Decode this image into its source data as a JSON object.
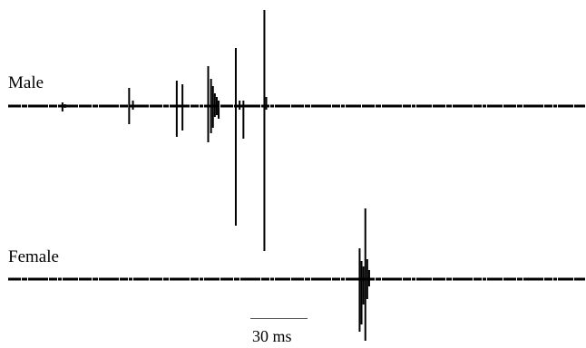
{
  "traces": [
    {
      "id": "male",
      "label": "Male",
      "spikes": [
        {
          "t_ms": 28.5,
          "up": 4,
          "down": 6
        },
        {
          "t_ms": 29.8,
          "up": 2,
          "down": 2
        },
        {
          "t_ms": 63.5,
          "up": 20,
          "down": 20
        },
        {
          "t_ms": 65.5,
          "up": 6,
          "down": 4
        },
        {
          "t_ms": 88.5,
          "up": 28,
          "down": 34
        },
        {
          "t_ms": 91.5,
          "up": 24,
          "down": 27
        },
        {
          "t_ms": 105,
          "up": 44,
          "down": 40
        },
        {
          "t_ms": 106.5,
          "up": 30,
          "down": 30
        },
        {
          "t_ms": 107.5,
          "up": 22,
          "down": 24
        },
        {
          "t_ms": 108.5,
          "up": 14,
          "down": 12
        },
        {
          "t_ms": 109.5,
          "up": 10,
          "down": 10
        },
        {
          "t_ms": 110.5,
          "up": 6,
          "down": 14
        },
        {
          "t_ms": 119.5,
          "up": 64,
          "down": 132
        },
        {
          "t_ms": 121.5,
          "up": 6,
          "down": 4
        },
        {
          "t_ms": 123.5,
          "up": 6,
          "down": 36
        },
        {
          "t_ms": 134.5,
          "up": 106,
          "down": 160
        },
        {
          "t_ms": 135.5,
          "up": 10,
          "down": 4
        }
      ]
    },
    {
      "id": "female",
      "label": "Female",
      "spikes": [
        {
          "t_ms": 184.5,
          "up": 34,
          "down": 58
        },
        {
          "t_ms": 185.5,
          "up": 20,
          "down": 50
        },
        {
          "t_ms": 186.5,
          "up": 14,
          "down": 28
        },
        {
          "t_ms": 187.5,
          "up": 78,
          "down": 68
        },
        {
          "t_ms": 188.5,
          "up": 22,
          "down": 22
        },
        {
          "t_ms": 189.5,
          "up": 10,
          "down": 8
        }
      ]
    }
  ],
  "scale_bar": {
    "duration_ms": 30,
    "label": "30 ms"
  },
  "colors": {
    "trace": "#000000",
    "scale_bar": "#555555",
    "background": "#ffffff"
  }
}
